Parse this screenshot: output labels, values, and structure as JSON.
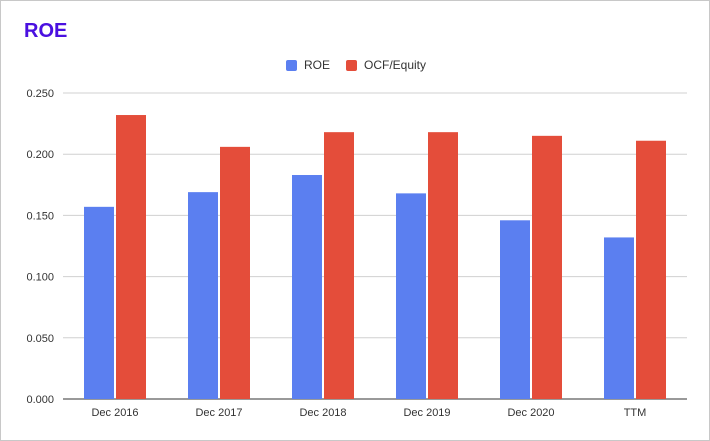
{
  "chart_data": {
    "type": "bar",
    "title": "ROE",
    "categories": [
      "Dec 2016",
      "Dec 2017",
      "Dec 2018",
      "Dec 2019",
      "Dec 2020",
      "TTM"
    ],
    "series": [
      {
        "name": "ROE",
        "color": "#5b7ff0",
        "values": [
          0.157,
          0.169,
          0.183,
          0.168,
          0.146,
          0.132
        ]
      },
      {
        "name": "OCF/Equity",
        "color": "#e44d3a",
        "values": [
          0.232,
          0.206,
          0.218,
          0.218,
          0.215,
          0.211
        ]
      }
    ],
    "ylim": [
      0,
      0.25
    ],
    "yticks": [
      "0.000",
      "0.050",
      "0.100",
      "0.150",
      "0.200",
      "0.250"
    ],
    "grid": true,
    "legend_position": "top-center"
  }
}
